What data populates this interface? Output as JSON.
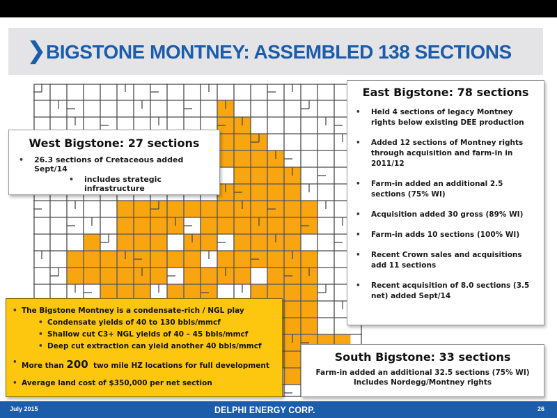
{
  "title": {
    "chevron": "❯",
    "text": "BIGSTONE MONTNEY:  ASSEMBLED 138 SECTIONS"
  },
  "colors": {
    "brand_blue": "#1b5cab",
    "land_orange": "#f8a50f",
    "callout_yellow": "#fdc60f",
    "title_band": "#e4e4e6"
  },
  "west": {
    "heading": "West Bigstone:  27 sections",
    "bullets": [
      "26.3 sections of Cretaceous added Sept/14"
    ],
    "sub_bullets": [
      "includes strategic infrastructure"
    ]
  },
  "east": {
    "heading": "East Bigstone: 78 sections",
    "bullets": [
      "Held 4 sections of legacy Montney rights below existing DEE production",
      "Added 12 sections of Montney rights through acquisition and farm-in in 2011/12",
      "Farm-in added an additional 2.5 sections (75% WI)",
      "Acquisition added 30 gross (89% WI)",
      "Farm-in adds 10 sections (100% WI)",
      "Recent Crown sales and acquisitions add 11 sections",
      "Recent acquisition of 8.0 sections (3.5 net) added Sept/14"
    ]
  },
  "south": {
    "heading": "South Bigstone: 33 sections",
    "lines": [
      "Farm-in added an additional 32.5 sections (75% WI)",
      "Includes Nordegg/Montney rights"
    ]
  },
  "callout": {
    "b1": "The Bigstone Montney is a condensate-rich / NGL play",
    "sub": [
      "Condensate yields of 40 to 130 bbls/mmcf",
      "Shallow cut C3+ NGL yields of 40 – 45 bbls/mmcf",
      "Deep cut extraction can yield another 40 bbls/mmcf"
    ],
    "b2_pre": "More than ",
    "b2_num": "200",
    "b2_post": "  two mile HZ locations for full development",
    "b3": "Average land cost of $350,000 per net section"
  },
  "footer": {
    "date": "July 2015",
    "company": "DELPHI ENERGY CORP.",
    "page": "26"
  }
}
